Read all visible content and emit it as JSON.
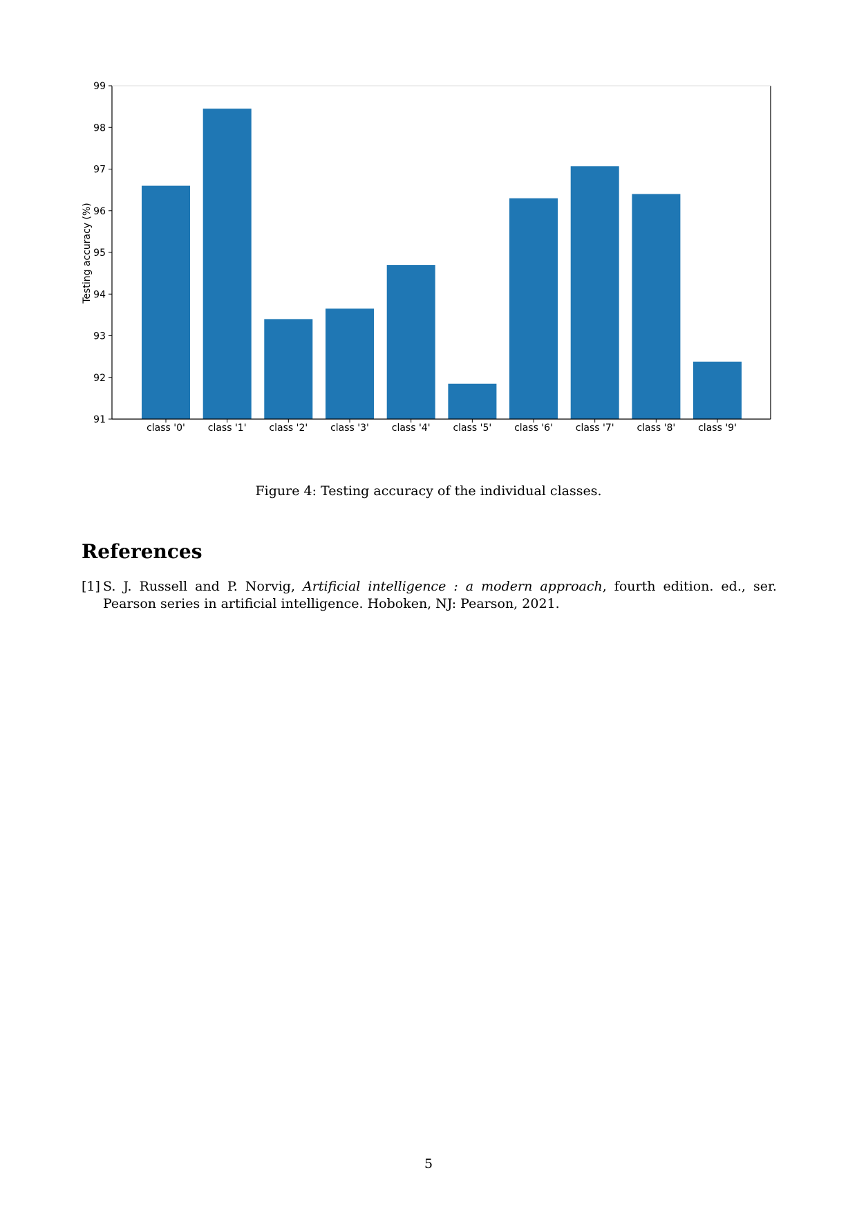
{
  "chart_data": {
    "type": "bar",
    "categories": [
      "class '0'",
      "class '1'",
      "class '2'",
      "class '3'",
      "class '4'",
      "class '5'",
      "class '6'",
      "class '7'",
      "class '8'",
      "class '9'"
    ],
    "values": [
      96.6,
      98.45,
      93.4,
      93.65,
      94.7,
      91.85,
      96.3,
      97.07,
      96.4,
      92.38
    ],
    "title": "",
    "xlabel": "",
    "ylabel": "Testing accuracy (%)",
    "ylim": [
      91,
      99
    ],
    "yticks": [
      "91",
      "92",
      "93",
      "94",
      "95",
      "96",
      "97",
      "98",
      "99"
    ],
    "bar_color": "#1f77b4",
    "grid": false
  },
  "figure": {
    "caption": "Figure 4: Testing accuracy of the individual classes."
  },
  "references": {
    "heading": "References",
    "items": [
      {
        "number": "[1]",
        "authors": "S. J. Russell and P. Norvig, ",
        "title": "Artificial intelligence : a modern approach",
        "rest": ", fourth edition. ed., ser. Pearson series in artificial intelligence.   Hoboken, NJ: Pearson, 2021."
      }
    ]
  },
  "page": {
    "number": "5"
  }
}
